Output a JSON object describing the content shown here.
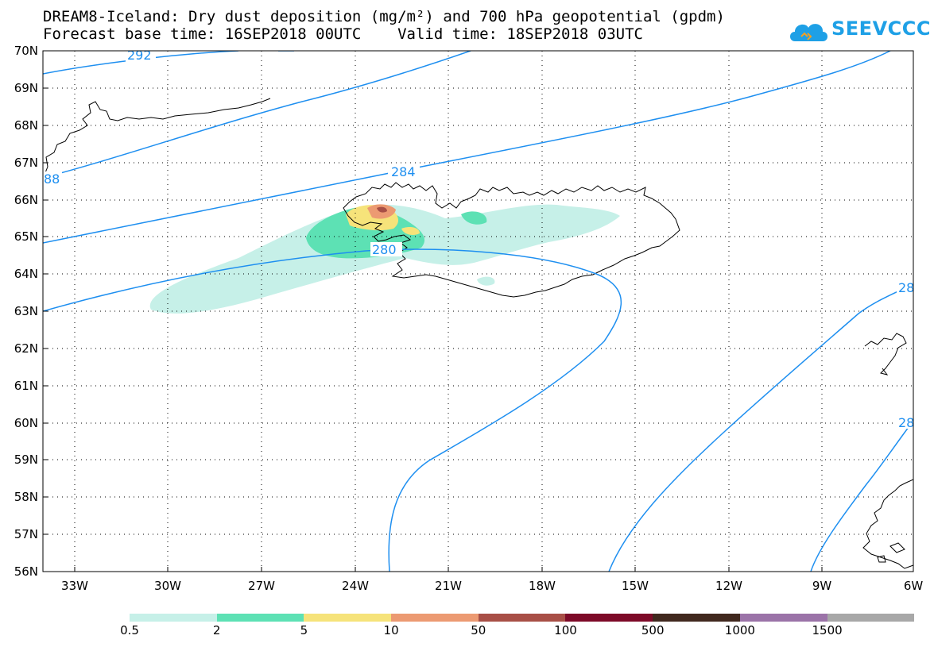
{
  "title": {
    "line1": "DREAM8-Iceland: Dry dust deposition (mg/m²) and 700 hPa geopotential (gpdm)",
    "line2": "Forecast base time: 16SEP2018 00UTC    Valid time: 18SEP2018 03UTC"
  },
  "logo": {
    "text": "SEEVCCC",
    "color": "#1ea0e6"
  },
  "map": {
    "lon_range": [
      -34,
      -6
    ],
    "lat_range": [
      56,
      70
    ],
    "lat_labels": [
      "70N",
      "69N",
      "68N",
      "67N",
      "66N",
      "65N",
      "64N",
      "63N",
      "62N",
      "61N",
      "60N",
      "59N",
      "58N",
      "57N",
      "56N"
    ],
    "lon_labels": [
      "33W",
      "30W",
      "27W",
      "24W",
      "21W",
      "18W",
      "15W",
      "12W",
      "9W",
      "6W"
    ],
    "gridlines": "dotted",
    "contour_color": "#1e8ff0",
    "contour_labels": [
      "292",
      "88",
      "284",
      "280",
      "28",
      "28"
    ]
  },
  "legend": {
    "colors": [
      "#c6f0e8",
      "#5de1b4",
      "#f6e37a",
      "#ec9a72",
      "#a84f46",
      "#7d0a28",
      "#40281e",
      "#9b73a8",
      "#a8a8a8"
    ],
    "labels": [
      "0.5",
      "2",
      "5",
      "10",
      "50",
      "100",
      "500",
      "1000",
      "1500"
    ]
  }
}
